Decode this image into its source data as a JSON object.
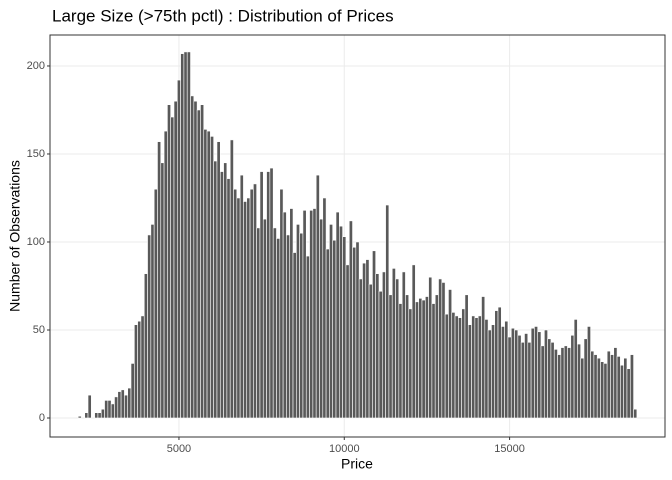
{
  "chart_data": {
    "type": "histogram",
    "title": "Large Size (>75th pctl) :  Distribution of Prices",
    "xlabel": "Price",
    "ylabel": "Number of Observations",
    "color": "#595959",
    "grid": true,
    "xlim": [
      1100,
      19700
    ],
    "ylim": [
      -10.8,
      217.6
    ],
    "xticks": [
      5000,
      10000,
      15000
    ],
    "yticks": [
      0,
      50,
      100,
      150,
      200
    ],
    "bins": [
      1950,
      2050,
      2150,
      2250,
      2350,
      2450,
      2550,
      2650,
      2750,
      2850,
      2950,
      3050,
      3150,
      3250,
      3350,
      3450,
      3550,
      3650,
      3750,
      3850,
      3950,
      4050,
      4150,
      4250,
      4350,
      4450,
      4550,
      4650,
      4750,
      4850,
      4950,
      5050,
      5150,
      5250,
      5350,
      5450,
      5550,
      5650,
      5750,
      5850,
      5950,
      6050,
      6150,
      6250,
      6350,
      6450,
      6550,
      6650,
      6750,
      6850,
      6950,
      7050,
      7150,
      7250,
      7350,
      7450,
      7550,
      7650,
      7750,
      7850,
      7950,
      8050,
      8150,
      8250,
      8350,
      8450,
      8550,
      8650,
      8750,
      8850,
      8950,
      9050,
      9150,
      9250,
      9350,
      9450,
      9550,
      9650,
      9750,
      9850,
      9950,
      10050,
      10150,
      10250,
      10350,
      10450,
      10550,
      10650,
      10750,
      10850,
      10950,
      11050,
      11150,
      11250,
      11350,
      11450,
      11550,
      11650,
      11750,
      11850,
      11950,
      12050,
      12150,
      12250,
      12350,
      12450,
      12550,
      12650,
      12750,
      12850,
      12950,
      13050,
      13150,
      13250,
      13350,
      13450,
      13550,
      13650,
      13750,
      13850,
      13950,
      14050,
      14150,
      14250,
      14350,
      14450,
      14550,
      14650,
      14750,
      14850,
      14950,
      15050,
      15150,
      15250,
      15350,
      15450,
      15550,
      15650,
      15750,
      15850,
      15950,
      16050,
      16150,
      16250,
      16350,
      16450,
      16550,
      16650,
      16750,
      16850,
      16950,
      17050,
      17150,
      17250,
      17350,
      17450,
      17550,
      17650,
      17750,
      17850,
      17950,
      18050,
      18150,
      18250,
      18350,
      18450,
      18550,
      18650,
      18750,
      18850
    ],
    "values": [
      1,
      0,
      3,
      13,
      0,
      3,
      3,
      5,
      10,
      10,
      8,
      12,
      15,
      16,
      13,
      17,
      31,
      53,
      55,
      58,
      82,
      104,
      110,
      130,
      157,
      145,
      163,
      178,
      171,
      180,
      192,
      207,
      208,
      208,
      183,
      180,
      175,
      178,
      164,
      163,
      160,
      146,
      157,
      140,
      145,
      136,
      158,
      130,
      125,
      138,
      123,
      125,
      130,
      133,
      108,
      140,
      113,
      140,
      142,
      108,
      102,
      130,
      117,
      104,
      119,
      94,
      110,
      105,
      118,
      92,
      118,
      119,
      138,
      113,
      125,
      96,
      110,
      101,
      117,
      109,
      103,
      87,
      112,
      97,
      100,
      79,
      88,
      90,
      76,
      95,
      82,
      72,
      83,
      121,
      70,
      85,
      79,
      65,
      83,
      70,
      62,
      87,
      66,
      68,
      67,
      69,
      80,
      65,
      70,
      79,
      77,
      59,
      73,
      60,
      58,
      57,
      62,
      70,
      53,
      58,
      57,
      58,
      69,
      56,
      50,
      53,
      61,
      63,
      52,
      55,
      46,
      51,
      50,
      47,
      43,
      48,
      43,
      51,
      52,
      49,
      41,
      50,
      45,
      43,
      39,
      36,
      40,
      41,
      40,
      47,
      56,
      42,
      34,
      45,
      52,
      38,
      36,
      34,
      32,
      31,
      38,
      36,
      40,
      35,
      30,
      34,
      28,
      36,
      5
    ]
  }
}
